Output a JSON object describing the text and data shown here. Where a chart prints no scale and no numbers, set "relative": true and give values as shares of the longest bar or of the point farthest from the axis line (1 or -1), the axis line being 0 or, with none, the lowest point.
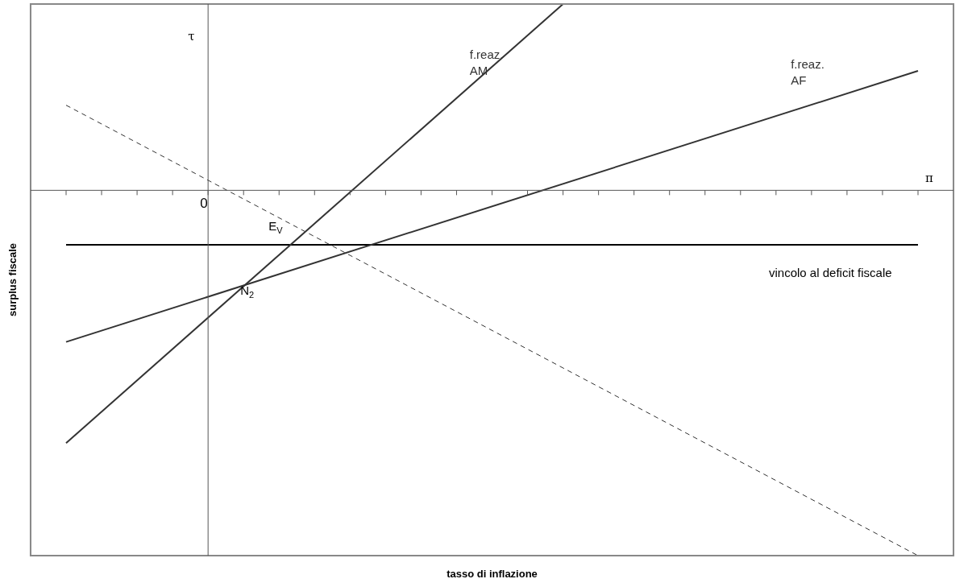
{
  "chart_data": {
    "type": "line",
    "relative": true,
    "xlabel": "tasso di inflazione",
    "ylabel": "surplus fiscale",
    "categories": [
      null,
      null,
      null,
      null,
      null,
      null,
      null,
      null,
      null,
      null,
      null,
      null,
      null,
      null,
      null,
      null,
      null,
      null,
      null,
      null,
      null,
      null,
      null,
      null,
      null
    ],
    "series": [
      {
        "name": "f.reaz. AM",
        "color": "#333333",
        "values": [
          -0.692,
          null,
          null,
          null,
          null,
          null,
          null,
          null,
          null,
          null,
          null,
          null,
          null,
          null,
          0.51,
          null,
          null,
          null,
          null,
          null,
          null,
          null,
          null,
          null,
          null
        ]
      },
      {
        "name": "f.reaz. AF",
        "color": "#333333",
        "values": [
          -0.415,
          null,
          null,
          null,
          null,
          null,
          null,
          null,
          null,
          null,
          null,
          null,
          null,
          null,
          null,
          null,
          null,
          null,
          null,
          null,
          null,
          null,
          null,
          null,
          0.327
        ]
      },
      {
        "name": "vincolo al deficit fiscale",
        "color": "#000000",
        "values": [
          -0.149,
          null,
          null,
          null,
          null,
          null,
          null,
          null,
          null,
          null,
          null,
          null,
          null,
          null,
          null,
          null,
          null,
          null,
          null,
          null,
          null,
          null,
          null,
          null,
          -0.149
        ]
      },
      {
        "color": "#333333",
        "line_style": "dashed",
        "values": [
          0.233,
          null,
          null,
          null,
          null,
          null,
          null,
          null,
          null,
          null,
          null,
          null,
          null,
          null,
          null,
          null,
          null,
          null,
          null,
          null,
          null,
          null,
          null,
          null,
          -1
        ]
      }
    ],
    "annotations": [
      "τ",
      "π",
      "0",
      "E$_{V}$",
      "N$_{2}$"
    ],
    "marker": "none"
  }
}
